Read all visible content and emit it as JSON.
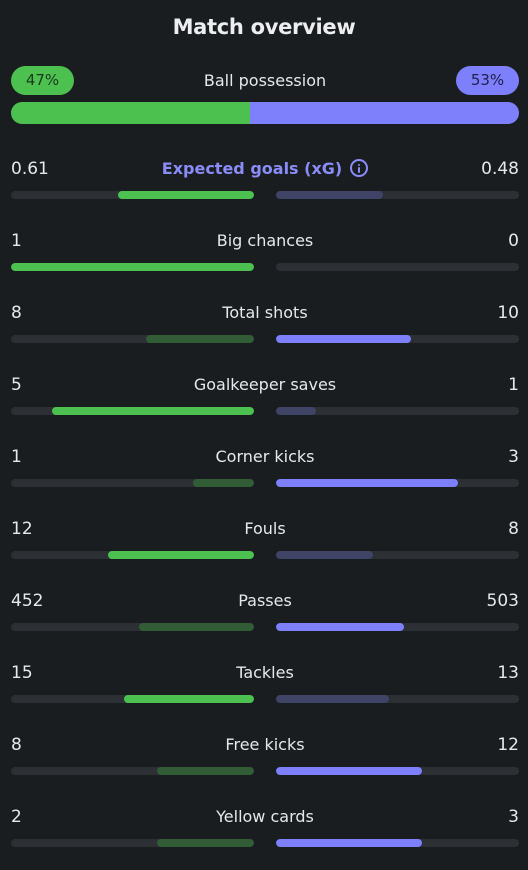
{
  "title": "Match overview",
  "colors": {
    "home": "#4cc14f",
    "home_muted": "#315c36",
    "away": "#7e80fb",
    "away_muted": "#3f4366",
    "track": "#2c3034",
    "background": "#1a1d20"
  },
  "possession": {
    "label": "Ball possession",
    "home": "47%",
    "away": "53%",
    "home_value": 47,
    "away_value": 53
  },
  "stats": [
    {
      "label": "Expected goals (xG)",
      "home": "0.61",
      "away": "0.48",
      "home_value": 0.61,
      "away_value": 0.48,
      "info_icon": "info-icon"
    },
    {
      "label": "Big chances",
      "home": "1",
      "away": "0",
      "home_value": 1,
      "away_value": 0
    },
    {
      "label": "Total shots",
      "home": "8",
      "away": "10",
      "home_value": 8,
      "away_value": 10
    },
    {
      "label": "Goalkeeper saves",
      "home": "5",
      "away": "1",
      "home_value": 5,
      "away_value": 1
    },
    {
      "label": "Corner kicks",
      "home": "1",
      "away": "3",
      "home_value": 1,
      "away_value": 3
    },
    {
      "label": "Fouls",
      "home": "12",
      "away": "8",
      "home_value": 12,
      "away_value": 8
    },
    {
      "label": "Passes",
      "home": "452",
      "away": "503",
      "home_value": 452,
      "away_value": 503
    },
    {
      "label": "Tackles",
      "home": "15",
      "away": "13",
      "home_value": 15,
      "away_value": 13
    },
    {
      "label": "Free kicks",
      "home": "8",
      "away": "12",
      "home_value": 8,
      "away_value": 12
    },
    {
      "label": "Yellow cards",
      "home": "2",
      "away": "3",
      "home_value": 2,
      "away_value": 3
    }
  ]
}
